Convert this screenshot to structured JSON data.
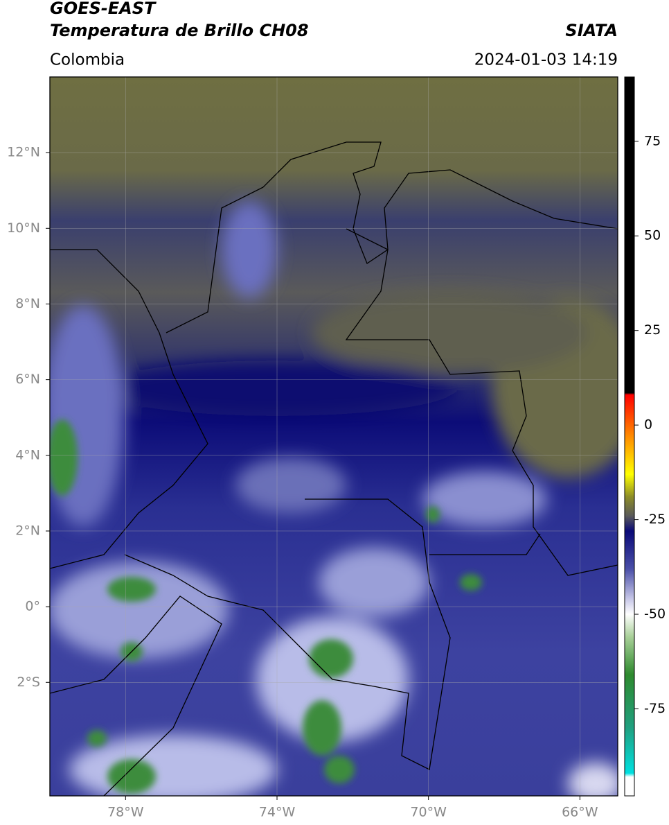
{
  "header": {
    "title_line1": "GOES-EAST",
    "title_line2": "Temperatura de Brillo CH08",
    "source": "SIATA",
    "region": "Colombia",
    "datetime": "2024-01-03 14:19"
  },
  "map": {
    "lon_extent": [
      -80,
      -65
    ],
    "lat_extent": [
      -5,
      14
    ],
    "lon_ticks": [
      {
        "value": -78,
        "label": "78°W"
      },
      {
        "value": -74,
        "label": "74°W"
      },
      {
        "value": -70,
        "label": "70°W"
      },
      {
        "value": -66,
        "label": "66°W"
      }
    ],
    "lat_ticks": [
      {
        "value": 12,
        "label": "12°N"
      },
      {
        "value": 10,
        "label": "10°N"
      },
      {
        "value": 8,
        "label": "8°N"
      },
      {
        "value": 6,
        "label": "6°N"
      },
      {
        "value": 4,
        "label": "4°N"
      },
      {
        "value": 2,
        "label": "2°N"
      },
      {
        "value": 0,
        "label": "0°"
      },
      {
        "value": -2,
        "label": "2°S"
      }
    ],
    "grid": true
  },
  "colorbar": {
    "range": [
      -98,
      92
    ],
    "ticks": [
      75,
      50,
      25,
      0,
      -25,
      -50,
      -75
    ],
    "colormap": [
      {
        "value": 92,
        "color": "#000000"
      },
      {
        "value": 8.5,
        "color": "#000000"
      },
      {
        "value": 8,
        "color": "#ff0000"
      },
      {
        "value": -3,
        "color": "#ff8c00"
      },
      {
        "value": -13,
        "color": "#ffff00"
      },
      {
        "value": -19,
        "color": "#8c8c28"
      },
      {
        "value": -24,
        "color": "#5a5a5a"
      },
      {
        "value": -28,
        "color": "#0a0a78"
      },
      {
        "value": -38,
        "color": "#4a4fa8"
      },
      {
        "value": -46,
        "color": "#c8c8e8"
      },
      {
        "value": -50,
        "color": "#ffffff"
      },
      {
        "value": -56,
        "color": "#a8d098"
      },
      {
        "value": -66,
        "color": "#2e8a2e"
      },
      {
        "value": -80,
        "color": "#20a080"
      },
      {
        "value": -92,
        "color": "#00e0e0"
      },
      {
        "value": -93,
        "color": "#ffffff"
      },
      {
        "value": -98,
        "color": "#ffffff"
      }
    ]
  }
}
